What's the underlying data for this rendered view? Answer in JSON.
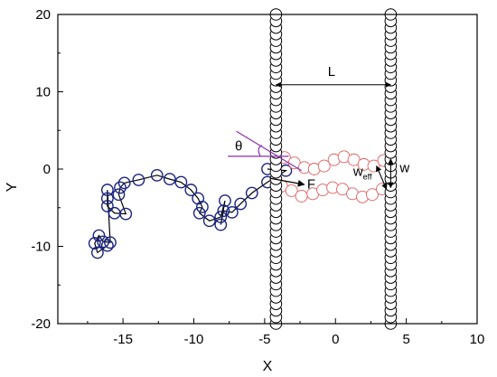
{
  "chart_data": {
    "type": "scatter",
    "xlabel": "X",
    "ylabel": "Y",
    "xlim": [
      -19.6,
      10
    ],
    "ylim": [
      -20,
      20
    ],
    "x_ticks": [
      -15,
      -10,
      -5,
      0,
      5,
      10
    ],
    "x_tick_labels": [
      "-15",
      "-10",
      "-5",
      "0",
      "5",
      "10"
    ],
    "y_ticks": [
      -20,
      -10,
      0,
      10,
      20
    ],
    "y_tick_labels": [
      "-20",
      "-10",
      "0",
      "10",
      "20"
    ],
    "colors": {
      "wall": "#000000",
      "polymer": "#1a237e",
      "channel": "#e06060",
      "angle": "#8b2fb0",
      "axes": "#000000"
    },
    "walls": [
      {
        "x": -4.2,
        "y_from": -20,
        "y_to": 20,
        "beads": 48
      },
      {
        "x": 3.9,
        "y_from": -20,
        "y_to": 20,
        "beads": 48
      }
    ],
    "polymer_chain": {
      "x": [
        -4.8,
        -3.5,
        -4.8,
        -5.9,
        -6.7,
        -7.3,
        -7.9,
        -8.1,
        -7.8,
        -8.1,
        -8.9,
        -9.6,
        -9.4,
        -9.7,
        -10.2,
        -10.9,
        -11.7,
        -12.6,
        -13.9,
        -14.9,
        -15.2,
        -15.3,
        -14.8,
        -15.6,
        -16.1,
        -16.1,
        -16.1,
        -15.9,
        -16.4,
        -16.7,
        -17.0,
        -16.8,
        -16.1
      ],
      "y": [
        0.0,
        -0.2,
        -1.7,
        -3.1,
        -4.5,
        -5.6,
        -5.4,
        -7.2,
        -4.1,
        -6.2,
        -6.7,
        -5.7,
        -4.9,
        -3.8,
        -2.7,
        -1.7,
        -1.3,
        -0.8,
        -1.4,
        -1.8,
        -2.4,
        -3.3,
        -5.8,
        -5.7,
        -4.8,
        -3.8,
        -2.7,
        -9.5,
        -9.4,
        -8.6,
        -9.6,
        -10.8,
        -9.9
      ]
    },
    "channel_upper": {
      "x": [
        -3.6,
        -2.9,
        -2.2,
        -1.5,
        -0.8,
        -0.1,
        0.6,
        1.3,
        2.0,
        2.7,
        3.4
      ],
      "y": [
        1.5,
        0.8,
        0.2,
        0.0,
        0.4,
        1.2,
        1.6,
        1.2,
        0.6,
        0.4,
        1.1
      ]
    },
    "channel_lower": {
      "x": [
        -3.8,
        -3.1,
        -2.4,
        -1.6,
        -0.9,
        -0.2,
        0.5,
        1.2,
        1.9,
        2.6,
        3.3
      ],
      "y": [
        -2.2,
        -2.8,
        -3.5,
        -3.2,
        -2.7,
        -2.4,
        -2.6,
        -3.2,
        -3.6,
        -3.3,
        -2.6
      ]
    },
    "annotations": {
      "L_label": "L",
      "theta_label": "θ",
      "F_label": "F",
      "w_label": "w",
      "weff_main": "w",
      "weff_sub": "eff"
    }
  }
}
